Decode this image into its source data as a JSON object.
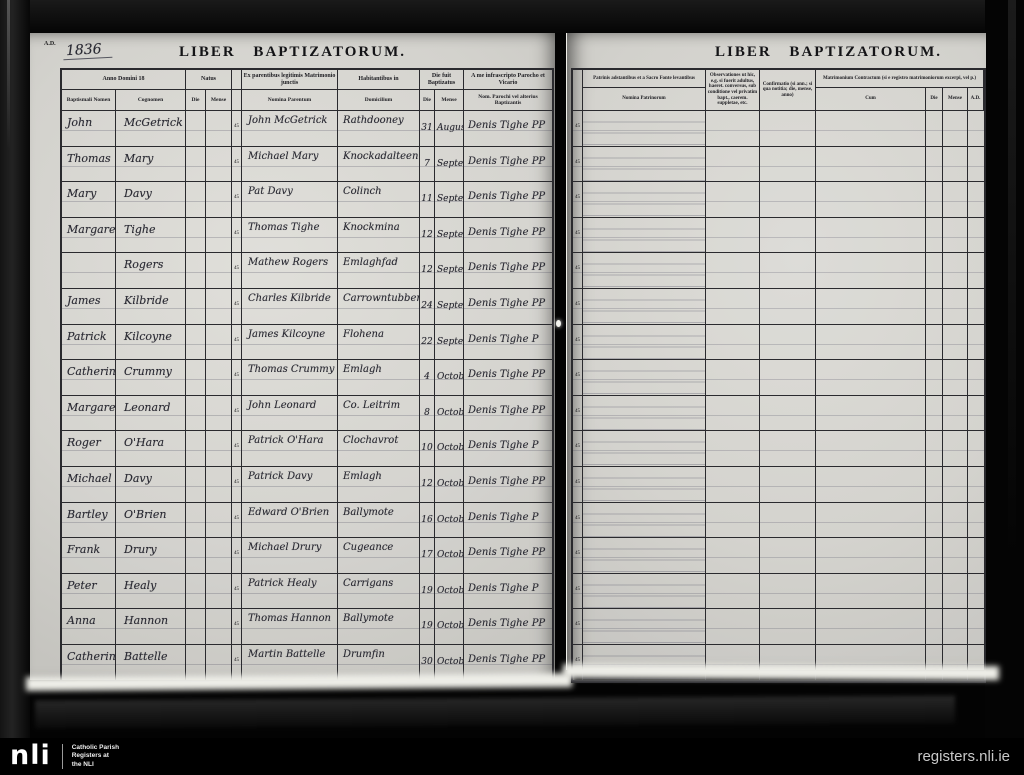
{
  "left_page": {
    "ad_label": "A.D.",
    "year": "1836",
    "title": "LIBER BAPTIZATORUM.",
    "margin_no": "45",
    "headers": {
      "anno_domini": "Anno Domini 18",
      "baptismal_name": "Baptismali Nomen",
      "cognomen": "Cognomen",
      "natus": "Natus",
      "die": "Die",
      "mense": "Mense",
      "parents_group": "Ex parentibus legitimis Matrimonio junctis",
      "parents_sub": "Nomina Parentum",
      "habitat_group": "Habitantibus in",
      "habitat_sub": "Domicilium",
      "baptized_group": "Die fuit Baptizatus",
      "minister_group": "A me infrascripto Parocho et Vicario",
      "minister_sub": "Nom. Parochi vel alterius Baptizantis"
    },
    "rows": [
      {
        "name": "John",
        "surname": "McGetrick",
        "parent": "John McGetrick",
        "domicile": "Rathdooney",
        "day": "31",
        "month": "August",
        "priest": "Denis Tighe PP"
      },
      {
        "name": "Thomas",
        "surname": "Mary",
        "parent": "Michael Mary",
        "domicile": "Knockadalteen",
        "day": "7",
        "month": "Septembr",
        "priest": "Denis Tighe PP"
      },
      {
        "name": "Mary",
        "surname": "Davy",
        "parent": "Pat Davy",
        "domicile": "Colinch",
        "day": "11",
        "month": "Septembr",
        "priest": "Denis Tighe PP"
      },
      {
        "name": "Margaret",
        "surname": "Tighe",
        "parent": "Thomas Tighe",
        "domicile": "Knockmina",
        "day": "12",
        "month": "Septembr",
        "priest": "Denis Tighe PP"
      },
      {
        "name": "",
        "surname": "Rogers",
        "parent": "Mathew Rogers",
        "domicile": "Emlaghfad",
        "day": "12",
        "month": "Septembr",
        "priest": "Denis Tighe PP"
      },
      {
        "name": "James",
        "surname": "Kilbride",
        "parent": "Charles Kilbride",
        "domicile": "Carrowntubberly",
        "day": "24",
        "month": "Septembr",
        "priest": "Denis Tighe PP"
      },
      {
        "name": "Patrick",
        "surname": "Kilcoyne",
        "parent": "James Kilcoyne",
        "domicile": "Flohena",
        "day": "22",
        "month": "Septembr",
        "priest": "Denis Tighe P"
      },
      {
        "name": "Catherine",
        "surname": "Crummy",
        "parent": "Thomas Crummy",
        "domicile": "Emlagh",
        "day": "4",
        "month": "October",
        "priest": "Denis Tighe PP"
      },
      {
        "name": "Margaret",
        "surname": "Leonard",
        "parent": "John Leonard",
        "domicile": "Co. Leitrim",
        "day": "8",
        "month": "October",
        "priest": "Denis Tighe PP"
      },
      {
        "name": "Roger",
        "surname": "O'Hara",
        "parent": "Patrick O'Hara",
        "domicile": "Clochavrot",
        "day": "10",
        "month": "October",
        "priest": "Denis Tighe P"
      },
      {
        "name": "Michael",
        "surname": "Davy",
        "parent": "Patrick Davy",
        "domicile": "Emlagh",
        "day": "12",
        "month": "October",
        "priest": "Denis Tighe PP"
      },
      {
        "name": "Bartley",
        "surname": "O'Brien",
        "parent": "Edward O'Brien",
        "domicile": "Ballymote",
        "day": "16",
        "month": "October",
        "priest": "Denis Tighe P"
      },
      {
        "name": "Frank",
        "surname": "Drury",
        "parent": "Michael Drury",
        "domicile": "Cugeance",
        "day": "17",
        "month": "October",
        "priest": "Denis Tighe PP"
      },
      {
        "name": "Peter",
        "surname": "Healy",
        "parent": "Patrick Healy",
        "domicile": "Carrigans",
        "day": "19",
        "month": "October",
        "priest": "Denis Tighe P"
      },
      {
        "name": "Anna",
        "surname": "Hannon",
        "parent": "Thomas Hannon",
        "domicile": "Ballymote",
        "day": "19",
        "month": "October",
        "priest": "Denis Tighe PP"
      },
      {
        "name": "Catherine",
        "surname": "Battelle",
        "parent": "Martin Battelle",
        "domicile": "Drumfin",
        "day": "30",
        "month": "October",
        "priest": "Denis Tighe PP"
      }
    ]
  },
  "right_page": {
    "title": "LIBER BAPTIZATORUM.",
    "margin_no": "45",
    "row_count": 16,
    "headers": {
      "patrini_group": "Patrinis adstantibus et a Sacro Fonte levantibus",
      "patrini_sub": "Nomina Patrinorum",
      "observationes": "Observationes ut hic, e.g. si fuerit adultus, haeret. conversus, sub conditione vel privatim bapt., caerem. suppletae, etc.",
      "confirmatio": "Confirmatio (si ann.; si qua notitia; die, mense, anno)",
      "matrimonium_group": "Matrimonium Contractum (si e registro matrimoniorum excerpi, vel p.)",
      "cum": "Cum",
      "die": "Die",
      "mense": "Mense",
      "ad": "A.D."
    }
  },
  "footer": {
    "logo": "nli",
    "caption_lines": [
      "Catholic Parish",
      "Registers at",
      "the NLI"
    ],
    "website": "registers.nli.ie"
  }
}
